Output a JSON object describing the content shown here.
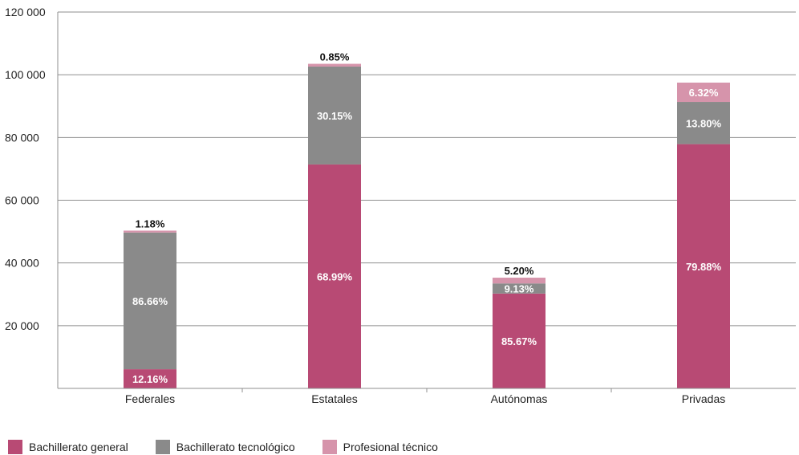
{
  "chart_data": {
    "type": "bar",
    "stacked": true,
    "categories": [
      "Federales",
      "Estatales",
      "Autónomas",
      "Privadas"
    ],
    "totals": [
      50300,
      103500,
      35300,
      97500
    ],
    "ylim": [
      0,
      120000
    ],
    "yticks": [
      20000,
      40000,
      60000,
      80000,
      100000,
      120000
    ],
    "ytick_labels": [
      "20 000",
      "40 000",
      "60 000",
      "80 000",
      "100 000",
      "120 000"
    ],
    "series": [
      {
        "name": "Bachillerato general",
        "color": "#b84a74",
        "percent_labels": [
          "12.16%",
          "68.99%",
          "85.67%",
          "79.88%"
        ],
        "shares": [
          12.16,
          68.99,
          85.67,
          79.88
        ]
      },
      {
        "name": "Bachillerato tecnológico",
        "color": "#8a8a8a",
        "percent_labels": [
          "86.66%",
          "30.15%",
          "9.13%",
          "13.80%"
        ],
        "shares": [
          86.66,
          30.15,
          9.13,
          13.8
        ]
      },
      {
        "name": "Profesional técnico",
        "color": "#d694ab",
        "percent_labels": [
          "1.18%",
          "0.85%",
          "5.20%",
          "6.32%"
        ],
        "shares": [
          1.18,
          0.85,
          5.2,
          6.32
        ]
      }
    ],
    "grid": true,
    "legend_position": "bottom-left"
  },
  "legend": {
    "item0": "Bachillerato general",
    "item1": "Bachillerato tecnológico",
    "item2": "Profesional técnico"
  }
}
